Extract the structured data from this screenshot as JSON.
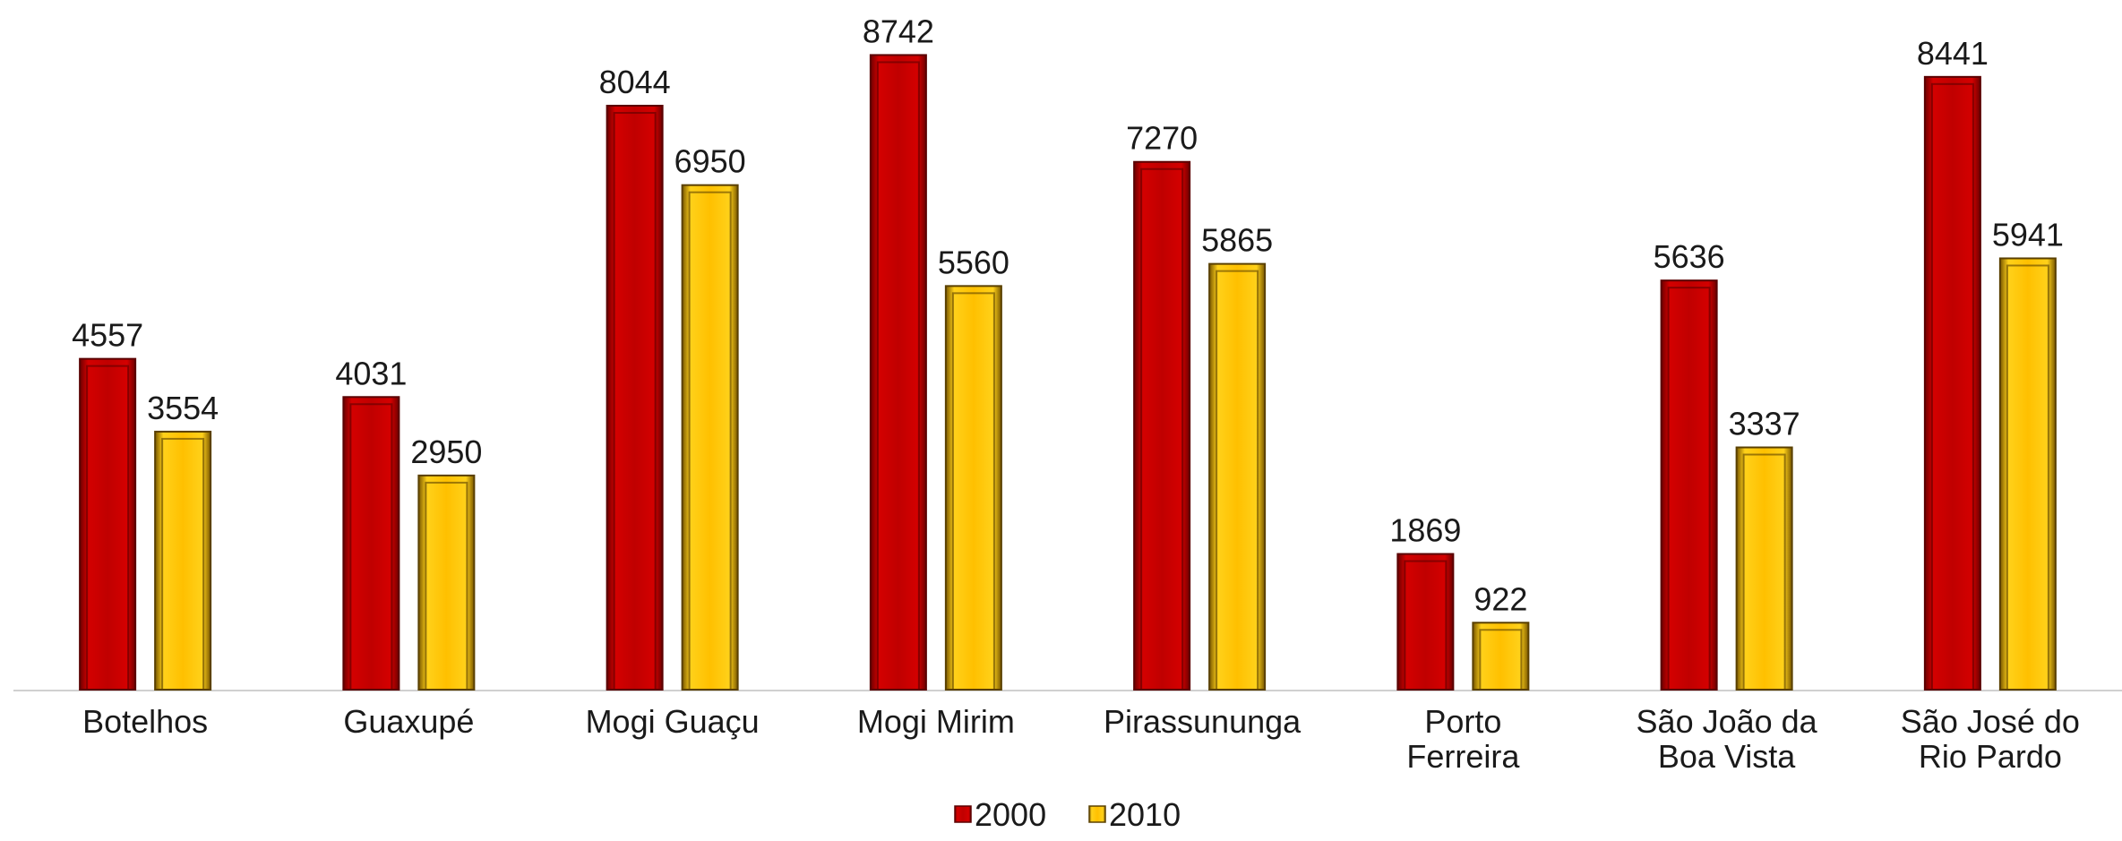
{
  "chart_data": {
    "type": "bar",
    "categories": [
      "Botelhos",
      "Guaxupé",
      "Mogi Guaçu",
      "Mogi Mirim",
      "Pirassununga",
      "Porto Ferreira",
      "São João da Boa Vista",
      "São José do Rio Pardo"
    ],
    "series": [
      {
        "name": "2000",
        "color": "#c00000",
        "values": [
          4557,
          4031,
          8044,
          8742,
          7270,
          1869,
          5636,
          8441
        ]
      },
      {
        "name": "2010",
        "color": "#ffc000",
        "values": [
          3554,
          2950,
          6950,
          5560,
          5865,
          922,
          3337,
          5941
        ]
      }
    ],
    "ylim": [
      0,
      9500
    ],
    "legend": "bottom"
  }
}
